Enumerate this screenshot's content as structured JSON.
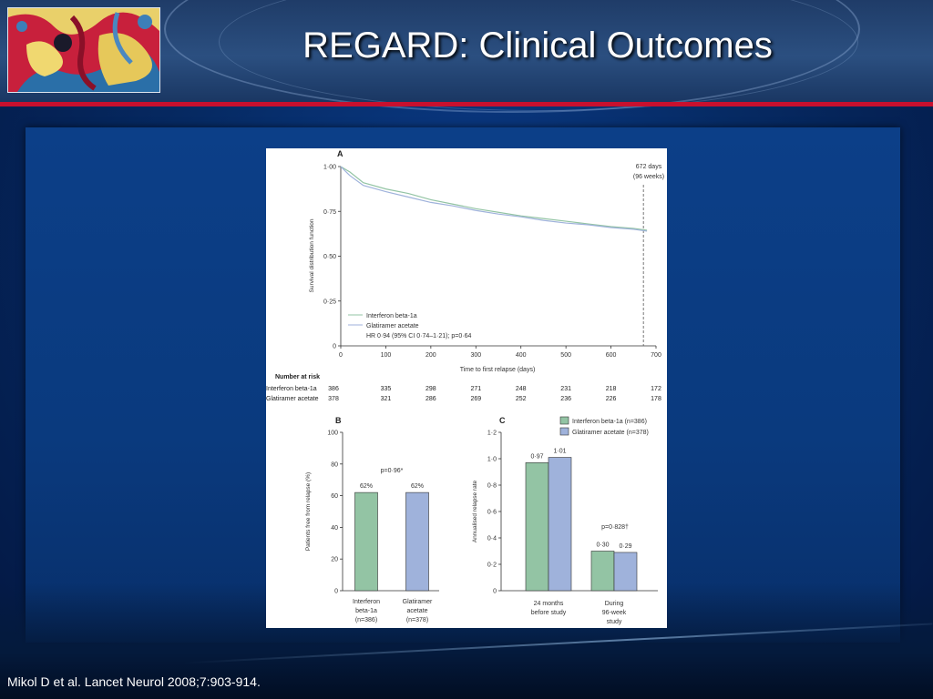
{
  "slide": {
    "title": "REGARD: Clinical Outcomes",
    "citation": "Mikol D et al. Lancet Neurol 2008;7:903-914."
  },
  "colors": {
    "interferon": "#93c4a4",
    "glatiramer": "#9fb2db",
    "accent_red": "#c8102e"
  },
  "chart_data": [
    {
      "panel": "A",
      "type": "line",
      "ylabel": "Survival distribution function",
      "xlabel": "Time to first relapse (days)",
      "xlim": [
        0,
        700
      ],
      "ylim": [
        0,
        1.0
      ],
      "x_ticks": [
        "0",
        "100",
        "200",
        "300",
        "400",
        "500",
        "600",
        "700"
      ],
      "y_ticks": [
        "0",
        "0·25",
        "0·50",
        "0·75",
        "1·00"
      ],
      "annotation": [
        "672 days",
        "(96 weeks)"
      ],
      "annotation_x": 672,
      "legend_stats": "HR 0·94 (95% CI 0·74–1·21); p=0·64",
      "series": [
        {
          "name": "Interferon beta-1a",
          "x": [
            0,
            20,
            50,
            100,
            150,
            200,
            250,
            300,
            350,
            400,
            450,
            500,
            550,
            600,
            650,
            680
          ],
          "y": [
            1.0,
            0.97,
            0.91,
            0.875,
            0.85,
            0.815,
            0.79,
            0.765,
            0.745,
            0.725,
            0.71,
            0.695,
            0.68,
            0.665,
            0.655,
            0.645
          ]
        },
        {
          "name": "Glatiramer acetate",
          "x": [
            0,
            20,
            50,
            100,
            150,
            200,
            250,
            300,
            350,
            400,
            450,
            500,
            550,
            600,
            650,
            680
          ],
          "y": [
            1.0,
            0.95,
            0.895,
            0.86,
            0.83,
            0.8,
            0.78,
            0.755,
            0.735,
            0.72,
            0.7,
            0.685,
            0.675,
            0.66,
            0.65,
            0.64
          ]
        }
      ],
      "risk_table": {
        "header": "Number at risk",
        "rows": [
          {
            "label": "Interferon beta-1a",
            "values": [
              "386",
              "335",
              "298",
              "271",
              "248",
              "231",
              "218",
              "172"
            ]
          },
          {
            "label": "Glatiramer acetate",
            "values": [
              "378",
              "321",
              "286",
              "269",
              "252",
              "236",
              "226",
              "178"
            ]
          }
        ]
      }
    },
    {
      "panel": "B",
      "type": "bar",
      "ylabel": "Patients free from relapse (%)",
      "ylim": [
        0,
        100
      ],
      "y_ticks": [
        "0",
        "20",
        "40",
        "60",
        "80",
        "100"
      ],
      "categories": [
        [
          "Interferon",
          "beta-1a",
          "(n=386)"
        ],
        [
          "Glatiramer",
          "acetate",
          "(n=378)"
        ]
      ],
      "values": [
        62,
        62
      ],
      "value_labels": [
        "62%",
        "62%"
      ],
      "p_value": "p=0·96*"
    },
    {
      "panel": "C",
      "type": "bar",
      "ylabel": "Annualised relapse rate",
      "ylim": [
        0,
        1.2
      ],
      "y_ticks": [
        "0",
        "0·2",
        "0·4",
        "0·6",
        "0·8",
        "1·0",
        "1·2"
      ],
      "categories": [
        [
          "24 months",
          "before study"
        ],
        [
          "During",
          "96-week",
          "study"
        ]
      ],
      "series": [
        {
          "name": "Interferon beta-1a (n=386)",
          "values": [
            0.97,
            0.3
          ],
          "value_labels": [
            "0·97",
            "0·30"
          ]
        },
        {
          "name": "Glatiramer acetate (n=378)",
          "values": [
            1.01,
            0.29
          ],
          "value_labels": [
            "1·01",
            "0·29"
          ]
        }
      ],
      "p_value": "p=0·828†"
    }
  ]
}
